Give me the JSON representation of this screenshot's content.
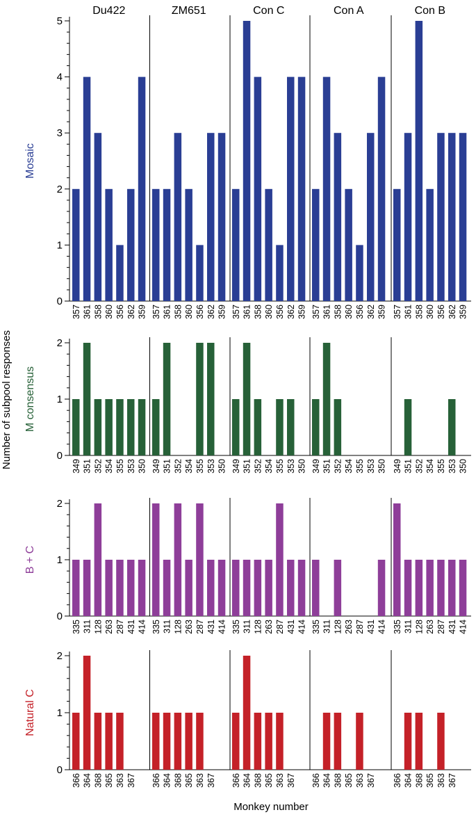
{
  "figure": {
    "ylabel": "Number of subpool responses",
    "xlabel": "Monkey number",
    "groups": [
      "Du422",
      "ZM651",
      "Con C",
      "Con A",
      "Con B"
    ]
  },
  "chart_data": [
    {
      "type": "bar",
      "panel": "Mosaic",
      "ylabel": "Mosaic",
      "color": "#2a3e94",
      "ylim": [
        0,
        5
      ],
      "yticks": [
        0,
        1,
        2,
        3,
        4,
        5
      ],
      "categories": [
        "357",
        "361",
        "358",
        "360",
        "356",
        "362",
        "359"
      ],
      "groups": [
        "Du422",
        "ZM651",
        "Con C",
        "Con A",
        "Con B"
      ],
      "series": [
        {
          "group": "Du422",
          "values": [
            2,
            4,
            3,
            2,
            1,
            2,
            4
          ]
        },
        {
          "group": "ZM651",
          "values": [
            2,
            2,
            3,
            2,
            1,
            3,
            3
          ]
        },
        {
          "group": "Con C",
          "values": [
            2,
            5,
            4,
            2,
            1,
            4,
            4
          ]
        },
        {
          "group": "Con A",
          "values": [
            2,
            4,
            3,
            2,
            1,
            3,
            4
          ]
        },
        {
          "group": "Con B",
          "values": [
            2,
            3,
            5,
            2,
            3,
            3,
            3
          ]
        }
      ]
    },
    {
      "type": "bar",
      "panel": "M consensus",
      "ylabel": "M consensus",
      "color": "#276138",
      "ylim": [
        0,
        2
      ],
      "yticks": [
        0,
        1,
        2
      ],
      "categories": [
        "349",
        "351",
        "352",
        "354",
        "355",
        "353",
        "350"
      ],
      "groups": [
        "Du422",
        "ZM651",
        "Con C",
        "Con A",
        "Con B"
      ],
      "series": [
        {
          "group": "Du422",
          "values": [
            1,
            2,
            1,
            1,
            1,
            1,
            1
          ]
        },
        {
          "group": "ZM651",
          "values": [
            1,
            2,
            0,
            0,
            2,
            2,
            0
          ]
        },
        {
          "group": "Con C",
          "values": [
            1,
            2,
            1,
            0,
            1,
            1,
            0
          ]
        },
        {
          "group": "Con A",
          "values": [
            1,
            2,
            1,
            0,
            0,
            0,
            0
          ]
        },
        {
          "group": "Con B",
          "values": [
            0,
            1,
            0,
            0,
            0,
            1,
            0
          ]
        }
      ]
    },
    {
      "type": "bar",
      "panel": "B + C",
      "ylabel": "B + C",
      "color": "#8e3e99",
      "ylim": [
        0,
        2
      ],
      "yticks": [
        0,
        1,
        2
      ],
      "categories": [
        "335",
        "311",
        "128",
        "263",
        "287",
        "431",
        "414"
      ],
      "groups": [
        "Du422",
        "ZM651",
        "Con C",
        "Con A",
        "Con B"
      ],
      "series": [
        {
          "group": "Du422",
          "values": [
            1,
            1,
            2,
            1,
            1,
            1,
            1
          ]
        },
        {
          "group": "ZM651",
          "values": [
            2,
            1,
            2,
            1,
            2,
            1,
            1
          ]
        },
        {
          "group": "Con C",
          "values": [
            1,
            1,
            1,
            1,
            2,
            1,
            1
          ]
        },
        {
          "group": "Con A",
          "values": [
            1,
            0,
            1,
            0,
            0,
            0,
            1
          ]
        },
        {
          "group": "Con B",
          "values": [
            2,
            1,
            1,
            1,
            1,
            1,
            1
          ]
        }
      ]
    },
    {
      "type": "bar",
      "panel": "Natural C",
      "ylabel": "Natural C",
      "color": "#c42128",
      "ylim": [
        0,
        2
      ],
      "yticks": [
        0,
        1,
        2
      ],
      "categories": [
        "366",
        "364",
        "368",
        "365",
        "363",
        "367"
      ],
      "groups": [
        "Du422",
        "ZM651",
        "Con C",
        "Con A",
        "Con B"
      ],
      "series": [
        {
          "group": "Du422",
          "values": [
            1,
            2,
            1,
            1,
            1,
            0
          ]
        },
        {
          "group": "ZM651",
          "values": [
            1,
            1,
            1,
            1,
            1,
            0
          ]
        },
        {
          "group": "Con C",
          "values": [
            1,
            2,
            1,
            1,
            1,
            0
          ]
        },
        {
          "group": "Con A",
          "values": [
            0,
            1,
            1,
            0,
            1,
            0
          ]
        },
        {
          "group": "Con B",
          "values": [
            0,
            1,
            1,
            0,
            1,
            0
          ]
        }
      ]
    }
  ]
}
